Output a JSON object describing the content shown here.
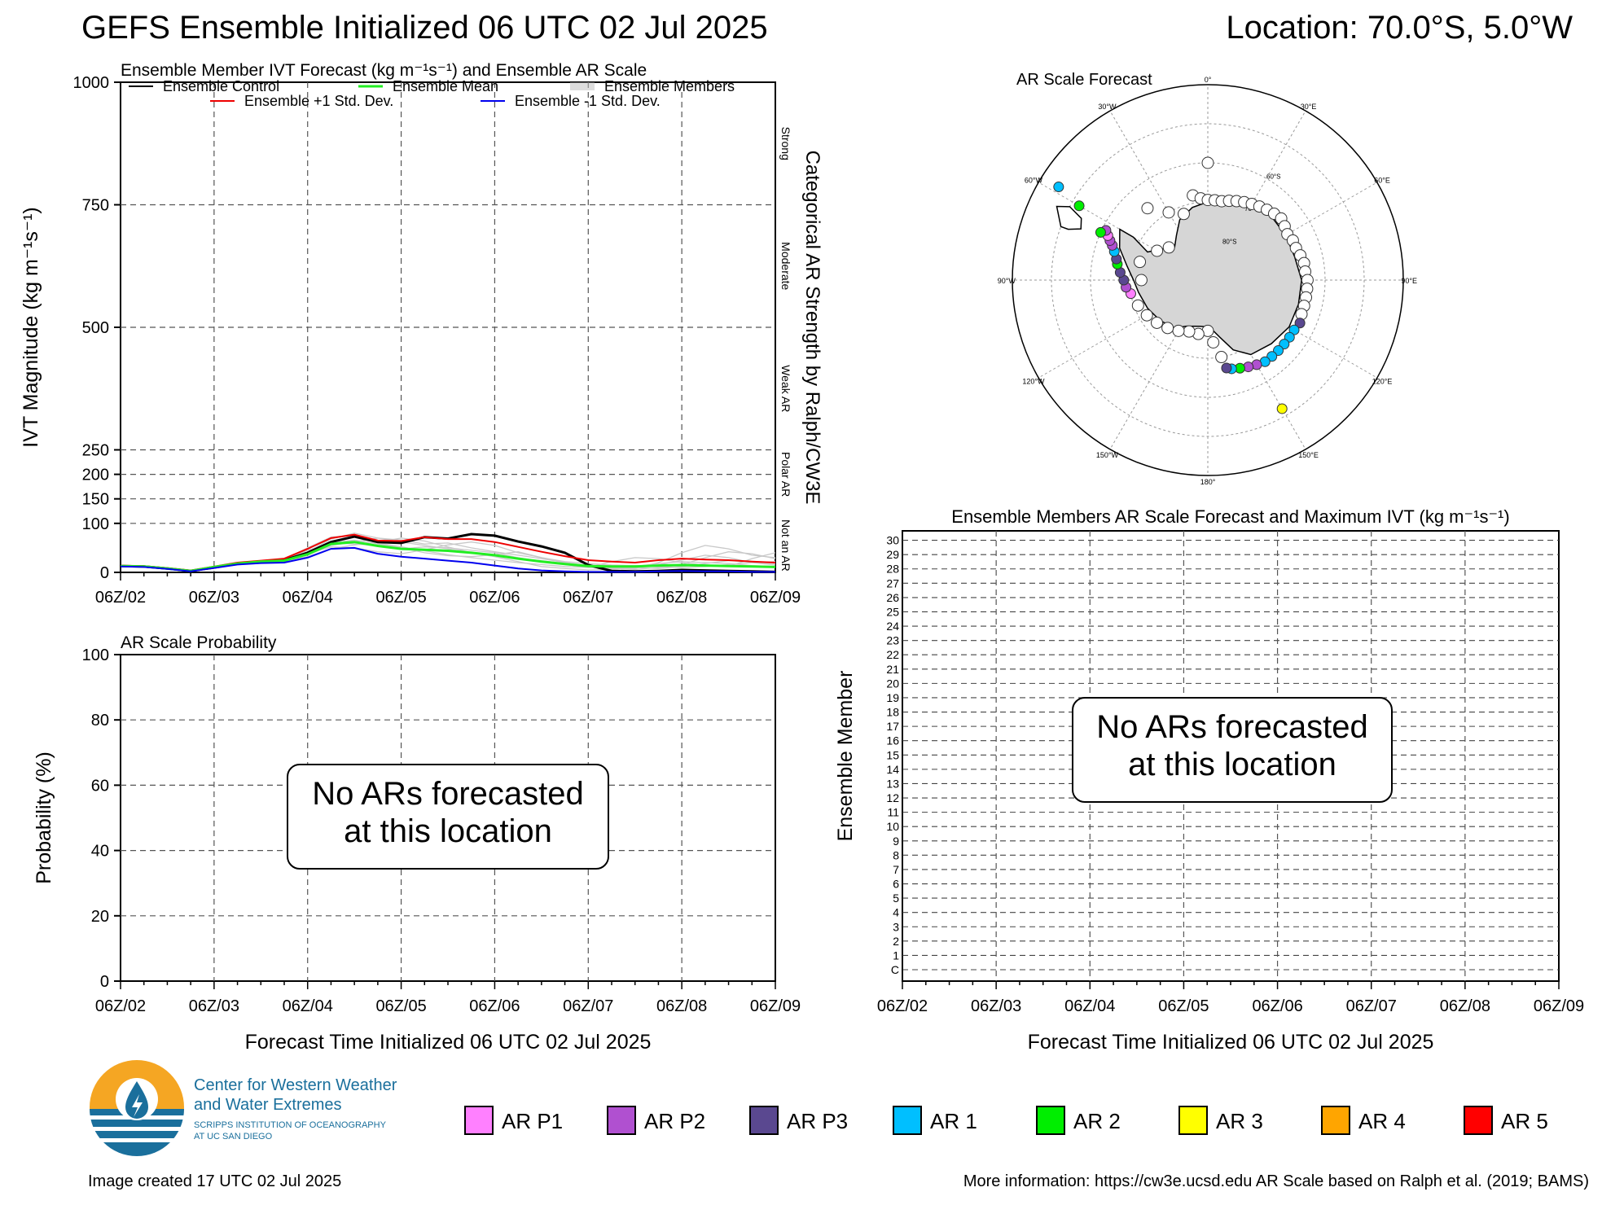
{
  "header": {
    "title": "GEFS Ensemble Initialized 06 UTC 02 Jul 2025",
    "location": "Location: 70.0°S, 5.0°W"
  },
  "footer": {
    "created": "Image created 17 UTC 02 Jul 2025",
    "more_info": "More information: https://cw3e.ucsd.edu AR Scale based on Ralph et al. (2019; BAMS)"
  },
  "logo": {
    "line1": "Center for Western Weather",
    "line2": "and Water Extremes",
    "line3": "SCRIPPS INSTITUTION OF OCEANOGRAPHY",
    "line4": "AT UC SAN DIEGO"
  },
  "ar_legend": [
    {
      "label": "AR P1",
      "color": "#ff80ff"
    },
    {
      "label": "AR P2",
      "color": "#b050d0"
    },
    {
      "label": "AR P3",
      "color": "#5a4890"
    },
    {
      "label": "AR 1",
      "color": "#00bfff"
    },
    {
      "label": "AR 2",
      "color": "#00ee00"
    },
    {
      "label": "AR 3",
      "color": "#ffff00"
    },
    {
      "label": "AR 4",
      "color": "#ffa500"
    },
    {
      "label": "AR 5",
      "color": "#ff0000"
    }
  ],
  "chart_data": [
    {
      "id": "ivt",
      "type": "line",
      "title": "Ensemble Member IVT Forecast (kg m⁻¹s⁻¹) and Ensemble AR Scale",
      "ylabel": "IVT Magnitude (kg m⁻¹s⁻¹)",
      "right_label": "Categorical AR Strength by Ralph/CW3E",
      "ylim": [
        0,
        1000
      ],
      "y_ticks": [
        "0",
        "100",
        "150",
        "200",
        "250",
        "500",
        "750",
        "1000"
      ],
      "y_tick_values": [
        0,
        100,
        150,
        200,
        250,
        500,
        750,
        1000
      ],
      "x_ticks": [
        "06Z/02",
        "06Z/03",
        "06Z/04",
        "06Z/05",
        "06Z/06",
        "06Z/07",
        "06Z/08",
        "06Z/09"
      ],
      "category_labels": [
        "Strong",
        "Moderate",
        "Weak AR",
        "Polar AR",
        "Not an AR"
      ],
      "grid": true,
      "legend": [
        {
          "name": "Ensemble Control",
          "color": "#000000"
        },
        {
          "name": "Ensemble Mean",
          "color": "#22ee22"
        },
        {
          "name": "Ensemble Members",
          "color": "#bbbbbb"
        },
        {
          "name": "Ensemble +1 Std. Dev.",
          "color": "#ee0000"
        },
        {
          "name": "Ensemble -1 Std. Dev.",
          "color": "#0000ee"
        }
      ],
      "x_days": [
        0,
        0.25,
        0.5,
        0.75,
        1,
        1.25,
        1.5,
        1.75,
        2,
        2.25,
        2.5,
        2.75,
        3,
        3.25,
        3.5,
        3.75,
        4,
        4.25,
        4.5,
        4.75,
        5,
        5.25,
        5.5,
        5.75,
        6,
        6.25,
        6.5,
        6.75,
        7
      ],
      "series": [
        {
          "name": "Ensemble Control",
          "color": "#000000",
          "width": 3,
          "values": [
            13,
            12,
            8,
            3,
            10,
            18,
            22,
            25,
            40,
            62,
            73,
            62,
            60,
            72,
            69,
            78,
            75,
            63,
            53,
            40,
            15,
            3,
            2,
            3,
            5,
            4,
            3,
            2,
            1
          ]
        },
        {
          "name": "Ensemble +1 Std. Dev.",
          "color": "#ee0000",
          "width": 2,
          "values": [
            14,
            13,
            9,
            4,
            12,
            20,
            24,
            28,
            48,
            70,
            77,
            65,
            64,
            72,
            68,
            68,
            62,
            52,
            42,
            33,
            25,
            22,
            20,
            25,
            28,
            26,
            25,
            22,
            20
          ]
        },
        {
          "name": "Ensemble Mean",
          "color": "#22ee22",
          "width": 3,
          "values": [
            13,
            12,
            8,
            3,
            11,
            18,
            22,
            24,
            37,
            58,
            62,
            54,
            48,
            46,
            44,
            40,
            35,
            28,
            22,
            17,
            13,
            12,
            12,
            14,
            15,
            14,
            13,
            12,
            11
          ]
        },
        {
          "name": "Ensemble -1 Std. Dev.",
          "color": "#0000ee",
          "width": 2,
          "values": [
            12,
            11,
            7,
            2,
            9,
            16,
            19,
            20,
            30,
            48,
            50,
            38,
            32,
            28,
            24,
            20,
            14,
            8,
            4,
            2,
            1,
            1,
            1,
            2,
            3,
            2,
            2,
            1,
            1
          ]
        }
      ],
      "members": [
        [
          13,
          12,
          8,
          3,
          11,
          19,
          22,
          26,
          45,
          60,
          58,
          55,
          48,
          52,
          50,
          45,
          40,
          30,
          22,
          16,
          10,
          8,
          12,
          18,
          22,
          20,
          18,
          14,
          12
        ],
        [
          13,
          12,
          8,
          3,
          10,
          18,
          22,
          24,
          42,
          68,
          80,
          70,
          62,
          55,
          48,
          40,
          32,
          22,
          12,
          8,
          5,
          6,
          10,
          15,
          25,
          35,
          30,
          20,
          15
        ],
        [
          13,
          12,
          8,
          3,
          11,
          17,
          21,
          25,
          35,
          55,
          62,
          70,
          66,
          58,
          60,
          50,
          42,
          35,
          28,
          20,
          14,
          10,
          8,
          20,
          40,
          55,
          48,
          35,
          30
        ],
        [
          13,
          12,
          8,
          3,
          10,
          18,
          21,
          23,
          38,
          52,
          50,
          42,
          38,
          46,
          56,
          62,
          55,
          40,
          30,
          22,
          18,
          15,
          14,
          12,
          10,
          12,
          16,
          20,
          22
        ],
        [
          13,
          12,
          8,
          3,
          11,
          19,
          23,
          27,
          50,
          72,
          75,
          60,
          52,
          44,
          36,
          30,
          25,
          20,
          16,
          12,
          10,
          22,
          30,
          28,
          20,
          15,
          12,
          28,
          40
        ],
        [
          13,
          12,
          8,
          3,
          10,
          17,
          22,
          24,
          32,
          48,
          56,
          62,
          70,
          64,
          52,
          40,
          35,
          28,
          24,
          18,
          15,
          12,
          10,
          8,
          12,
          18,
          24,
          22,
          18
        ],
        [
          13,
          12,
          8,
          3,
          11,
          18,
          22,
          25,
          40,
          60,
          66,
          58,
          50,
          40,
          34,
          32,
          36,
          42,
          30,
          20,
          12,
          8,
          6,
          10,
          16,
          30,
          42,
          38,
          28
        ]
      ]
    },
    {
      "id": "prob",
      "type": "line",
      "title": "AR Scale Probability",
      "ylabel": "Probability (%)",
      "xlabel": "Forecast Time Initialized 06 UTC 02 Jul 2025",
      "ylim": [
        0,
        100
      ],
      "y_ticks": [
        "0",
        "20",
        "40",
        "60",
        "80",
        "100"
      ],
      "x_ticks": [
        "06Z/02",
        "06Z/03",
        "06Z/04",
        "06Z/05",
        "06Z/06",
        "06Z/07",
        "06Z/08",
        "06Z/09"
      ],
      "grid": true,
      "message": "No ARs forecasted at this location",
      "message_line1": "No ARs forecasted",
      "message_line2": "at this location",
      "series": []
    },
    {
      "id": "members",
      "type": "heatmap",
      "title": "Ensemble Members AR Scale Forecast and Maximum IVT (kg m⁻¹s⁻¹)",
      "ylabel": "Ensemble Member",
      "xlabel": "Forecast Time Initialized 06 UTC 02 Jul 2025",
      "y_ticks": [
        "C",
        "1",
        "2",
        "3",
        "4",
        "5",
        "6",
        "7",
        "8",
        "9",
        "10",
        "11",
        "12",
        "13",
        "14",
        "15",
        "16",
        "17",
        "18",
        "19",
        "20",
        "21",
        "22",
        "23",
        "24",
        "25",
        "26",
        "27",
        "28",
        "29",
        "30"
      ],
      "x_ticks": [
        "06Z/02",
        "06Z/03",
        "06Z/04",
        "06Z/05",
        "06Z/06",
        "06Z/07",
        "06Z/08",
        "06Z/09"
      ],
      "grid": true,
      "message_line1": "No ARs forecasted",
      "message_line2": "at this location",
      "values": []
    },
    {
      "id": "map",
      "type": "scatter",
      "title": "AR Scale Forecast",
      "projection": "south polar stereographic",
      "lon_labels": [
        "0°",
        "30°E",
        "60°E",
        "90°E",
        "120°E",
        "150°E",
        "180°",
        "150°W",
        "120°W",
        "90°W",
        "60°W",
        "30°W"
      ],
      "lat_labels": [
        "60°S",
        "70°S",
        "80°S"
      ],
      "points": [
        {
          "lat": -60.0,
          "lon": 0,
          "category": "none"
        },
        {
          "lat": -68.0,
          "lon": -10,
          "category": "none"
        },
        {
          "lat": -69.0,
          "lon": -5,
          "category": "none"
        },
        {
          "lat": -69.5,
          "lon": 0,
          "category": "none"
        },
        {
          "lat": -69.5,
          "lon": 5,
          "category": "none"
        },
        {
          "lat": -69.5,
          "lon": 10,
          "category": "none"
        },
        {
          "lat": -69.0,
          "lon": 15,
          "category": "none"
        },
        {
          "lat": -68.5,
          "lon": 20,
          "category": "none"
        },
        {
          "lat": -68.0,
          "lon": 25,
          "category": "none"
        },
        {
          "lat": -67.5,
          "lon": 30,
          "category": "none"
        },
        {
          "lat": -67.0,
          "lon": 35,
          "category": "none"
        },
        {
          "lat": -66.5,
          "lon": 40,
          "category": "none"
        },
        {
          "lat": -66.0,
          "lon": 45,
          "category": "none"
        },
        {
          "lat": -65.5,
          "lon": 50,
          "category": "none"
        },
        {
          "lat": -66.0,
          "lon": 55,
          "category": "none"
        },
        {
          "lat": -66.5,
          "lon": 60,
          "category": "none"
        },
        {
          "lat": -66.0,
          "lon": 65,
          "category": "none"
        },
        {
          "lat": -66.0,
          "lon": 70,
          "category": "none"
        },
        {
          "lat": -65.5,
          "lon": 75,
          "category": "none"
        },
        {
          "lat": -65.0,
          "lon": 80,
          "category": "none"
        },
        {
          "lat": -65.0,
          "lon": 85,
          "category": "none"
        },
        {
          "lat": -64.5,
          "lon": 90,
          "category": "none"
        },
        {
          "lat": -64.5,
          "lon": 95,
          "category": "none"
        },
        {
          "lat": -64.5,
          "lon": 100,
          "category": "none"
        },
        {
          "lat": -64.5,
          "lon": 105,
          "category": "none"
        },
        {
          "lat": -64.5,
          "lon": 110,
          "category": "none"
        },
        {
          "lat": -64.0,
          "lon": 115,
          "category": "P3"
        },
        {
          "lat": -64.5,
          "lon": 120,
          "category": "AR1"
        },
        {
          "lat": -64.5,
          "lon": 125,
          "category": "AR1"
        },
        {
          "lat": -64.5,
          "lon": 130,
          "category": "AR1"
        },
        {
          "lat": -64.5,
          "lon": 135,
          "category": "AR1"
        },
        {
          "lat": -64.5,
          "lon": 140,
          "category": "AR1"
        },
        {
          "lat": -64.5,
          "lon": 145,
          "category": "AR1"
        },
        {
          "lat": -65.0,
          "lon": 150,
          "category": "P2"
        },
        {
          "lat": -65.5,
          "lon": 155,
          "category": "P2"
        },
        {
          "lat": -66.0,
          "lon": 160,
          "category": "AR2"
        },
        {
          "lat": -66.5,
          "lon": 165,
          "category": "AR1"
        },
        {
          "lat": -67.0,
          "lon": 168,
          "category": "P3"
        },
        {
          "lat": -70.0,
          "lon": 170,
          "category": "none"
        },
        {
          "lat": -74.0,
          "lon": 175,
          "category": "none"
        },
        {
          "lat": -77.0,
          "lon": 180,
          "category": "none"
        },
        {
          "lat": -76.0,
          "lon": -170,
          "category": "none"
        },
        {
          "lat": -76.0,
          "lon": -160,
          "category": "none"
        },
        {
          "lat": -75.0,
          "lon": -150,
          "category": "none"
        },
        {
          "lat": -74.0,
          "lon": -140,
          "category": "none"
        },
        {
          "lat": -73.0,
          "lon": -130,
          "category": "none"
        },
        {
          "lat": -72.0,
          "lon": -120,
          "category": "none"
        },
        {
          "lat": -71.0,
          "lon": -110,
          "category": "none"
        },
        {
          "lat": -70.0,
          "lon": -100,
          "category": "P1"
        },
        {
          "lat": -69.0,
          "lon": -95,
          "category": "P2"
        },
        {
          "lat": -68.5,
          "lon": -90,
          "category": "P3"
        },
        {
          "lat": -67.5,
          "lon": -85,
          "category": "P3"
        },
        {
          "lat": -66.5,
          "lon": -80,
          "category": "AR2"
        },
        {
          "lat": -66.0,
          "lon": -77,
          "category": "P3"
        },
        {
          "lat": -65.0,
          "lon": -73,
          "category": "AR1"
        },
        {
          "lat": -64.0,
          "lon": -70,
          "category": "P2"
        },
        {
          "lat": -63.0,
          "lon": -68,
          "category": "P2"
        },
        {
          "lat": -62.0,
          "lon": -66,
          "category": "P1"
        },
        {
          "lat": -61.0,
          "lon": -64,
          "category": "P2"
        },
        {
          "lat": -60.0,
          "lon": -66,
          "category": "AR2"
        },
        {
          "lat": -52.0,
          "lon": -60,
          "category": "AR2"
        },
        {
          "lat": -45.0,
          "lon": -58,
          "category": "AR1"
        },
        {
          "lat": -52.0,
          "lon": 150,
          "category": "AR3"
        },
        {
          "lat": -66.0,
          "lon": -40,
          "category": "none"
        },
        {
          "lat": -70.0,
          "lon": -30,
          "category": "none"
        },
        {
          "lat": -72.0,
          "lon": -20,
          "category": "none"
        },
        {
          "lat": -75.0,
          "lon": -60,
          "category": "none"
        },
        {
          "lat": -77.0,
          "lon": -50,
          "category": "none"
        },
        {
          "lat": -72.0,
          "lon": -75,
          "category": "none"
        },
        {
          "lat": -73.0,
          "lon": -90,
          "category": "none"
        }
      ]
    }
  ]
}
